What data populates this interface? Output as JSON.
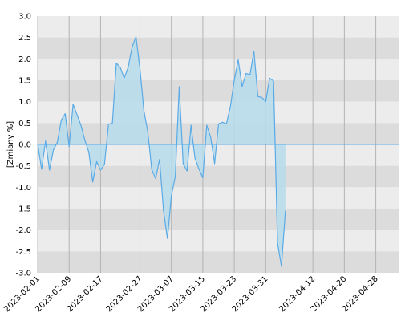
{
  "chart_data": {
    "type": "area",
    "title": "",
    "xlabel": "",
    "ylabel": "[Zmiany %]",
    "ylim": [
      -3.0,
      3.0
    ],
    "yticks": [
      "3.0",
      "2.5",
      "2.0",
      "1.5",
      "1.0",
      "0.5",
      "0.0",
      "-0.5",
      "-1.0",
      "-1.5",
      "-2.0",
      "-2.5",
      "-3.0"
    ],
    "xlim": [
      "2023-02-01",
      "2023-05-04"
    ],
    "xticks": [
      "2023-02-01",
      "2023-02-09",
      "2023-02-17",
      "2023-02-27",
      "2023-03-07",
      "2023-03-15",
      "2023-03-23",
      "2023-03-31",
      "2023-04-12",
      "2023-04-20",
      "2023-04-28"
    ],
    "grid": true,
    "colors": {
      "fill": "#b6dcec",
      "line": "#5aaae6",
      "band_light": "#ececec",
      "band_dark": "#dcdcdc",
      "vgrid": "#b4b4b4"
    },
    "series": [
      {
        "points": [
          [
            "2023-02-01",
            0.0
          ],
          [
            "2023-02-02",
            -0.58
          ],
          [
            "2023-02-03",
            0.08
          ],
          [
            "2023-02-04",
            -0.6
          ],
          [
            "2023-02-05",
            -0.13
          ],
          [
            "2023-02-06",
            0.05
          ],
          [
            "2023-02-07",
            0.57
          ],
          [
            "2023-02-08",
            0.72
          ],
          [
            "2023-02-09",
            -0.05
          ],
          [
            "2023-02-10",
            0.94
          ],
          [
            "2023-02-11",
            0.7
          ],
          [
            "2023-02-12",
            0.45
          ],
          [
            "2023-02-13",
            0.1
          ],
          [
            "2023-02-14",
            -0.18
          ],
          [
            "2023-02-15",
            -0.88
          ],
          [
            "2023-02-16",
            -0.4
          ],
          [
            "2023-02-17",
            -0.6
          ],
          [
            "2023-02-18",
            -0.46
          ],
          [
            "2023-02-19",
            0.47
          ],
          [
            "2023-02-20",
            0.5
          ],
          [
            "2023-02-21",
            1.9
          ],
          [
            "2023-02-22",
            1.8
          ],
          [
            "2023-02-23",
            1.55
          ],
          [
            "2023-02-24",
            1.8
          ],
          [
            "2023-02-25",
            2.27
          ],
          [
            "2023-02-26",
            2.52
          ],
          [
            "2023-02-27",
            1.78
          ],
          [
            "2023-02-28",
            0.8
          ],
          [
            "2023-03-01",
            0.3
          ],
          [
            "2023-03-02",
            -0.58
          ],
          [
            "2023-03-03",
            -0.8
          ],
          [
            "2023-03-04",
            -0.35
          ],
          [
            "2023-03-05",
            -1.55
          ],
          [
            "2023-03-06",
            -2.2
          ],
          [
            "2023-03-07",
            -1.2
          ],
          [
            "2023-03-08",
            -0.75
          ],
          [
            "2023-03-09",
            1.35
          ],
          [
            "2023-03-10",
            -0.45
          ],
          [
            "2023-03-11",
            -0.62
          ],
          [
            "2023-03-12",
            0.45
          ],
          [
            "2023-03-13",
            -0.32
          ],
          [
            "2023-03-14",
            -0.57
          ],
          [
            "2023-03-15",
            -0.78
          ],
          [
            "2023-03-16",
            0.45
          ],
          [
            "2023-03-17",
            0.17
          ],
          [
            "2023-03-18",
            -0.45
          ],
          [
            "2023-03-19",
            0.48
          ],
          [
            "2023-03-20",
            0.52
          ],
          [
            "2023-03-21",
            0.48
          ],
          [
            "2023-03-22",
            0.88
          ],
          [
            "2023-03-23",
            1.5
          ],
          [
            "2023-03-24",
            1.98
          ],
          [
            "2023-03-25",
            1.35
          ],
          [
            "2023-03-26",
            1.66
          ],
          [
            "2023-03-27",
            1.63
          ],
          [
            "2023-03-28",
            2.18
          ],
          [
            "2023-03-29",
            1.12
          ],
          [
            "2023-03-30",
            1.1
          ],
          [
            "2023-03-31",
            1.0
          ],
          [
            "2023-04-01",
            1.55
          ],
          [
            "2023-04-02",
            1.48
          ],
          [
            "2023-04-03",
            -2.3
          ],
          [
            "2023-04-04",
            -2.85
          ],
          [
            "2023-04-05",
            -1.55
          ]
        ]
      }
    ]
  }
}
